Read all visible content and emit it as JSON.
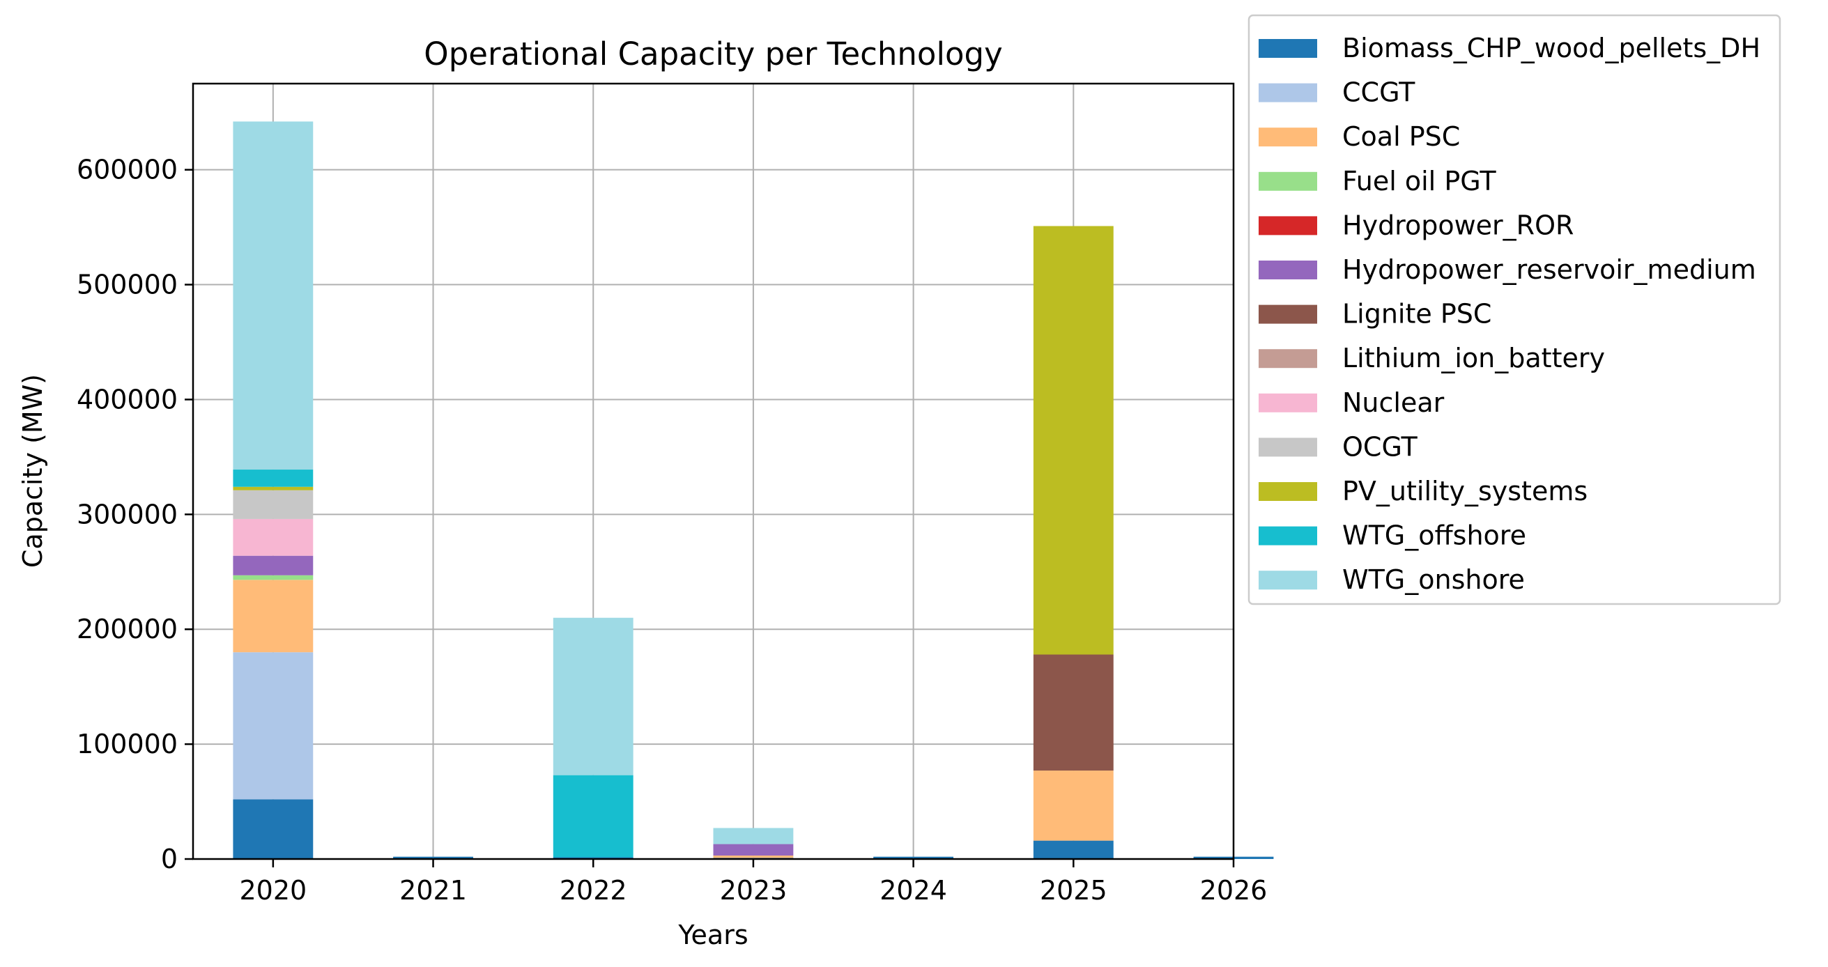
{
  "chart_data": {
    "type": "bar",
    "stacked": true,
    "title": "Operational Capacity per Technology",
    "xlabel": "Years",
    "ylabel": "Capacity (MW)",
    "categories": [
      "2020",
      "2021",
      "2022",
      "2023",
      "2024",
      "2025",
      "2026"
    ],
    "ylim": [
      0,
      675000
    ],
    "yticks": [
      0,
      100000,
      200000,
      300000,
      400000,
      500000,
      600000
    ],
    "ytick_labels": [
      "0",
      "100000",
      "200000",
      "300000",
      "400000",
      "500000",
      "600000"
    ],
    "grid": true,
    "legend_position": "outside-right",
    "series": [
      {
        "name": "Biomass_CHP_wood_pellets_DH",
        "color": "#1f77b4",
        "values": [
          52000,
          2000,
          1500,
          1000,
          2000,
          16000,
          2000
        ]
      },
      {
        "name": "CCGT",
        "color": "#aec7e8",
        "values": [
          128000,
          0,
          0,
          0,
          0,
          0,
          0
        ]
      },
      {
        "name": "Coal PSC",
        "color": "#ffbb78",
        "values": [
          63000,
          0,
          0,
          2000,
          0,
          61000,
          0
        ]
      },
      {
        "name": "Fuel oil PGT",
        "color": "#98df8a",
        "values": [
          4000,
          0,
          0,
          0,
          0,
          0,
          0
        ]
      },
      {
        "name": "Hydropower_ROR",
        "color": "#d62728",
        "values": [
          0,
          0,
          0,
          0,
          0,
          0,
          0
        ]
      },
      {
        "name": "Hydropower_reservoir_medium",
        "color": "#9467bd",
        "values": [
          17000,
          0,
          0,
          10000,
          0,
          0,
          0
        ]
      },
      {
        "name": "Lignite PSC",
        "color": "#8c564b",
        "values": [
          0,
          0,
          0,
          0,
          0,
          101000,
          0
        ]
      },
      {
        "name": "Lithium_ion_battery",
        "color": "#c49c94",
        "values": [
          0,
          0,
          0,
          0,
          0,
          0,
          0
        ]
      },
      {
        "name": "Nuclear",
        "color": "#f7b6d2",
        "values": [
          32000,
          0,
          0,
          0,
          0,
          0,
          0
        ]
      },
      {
        "name": "OCGT",
        "color": "#c7c7c7",
        "values": [
          25000,
          0,
          0,
          0,
          0,
          0,
          0
        ]
      },
      {
        "name": "PV_utility_systems",
        "color": "#bcbd22",
        "values": [
          3000,
          0,
          0,
          0,
          0,
          373000,
          0
        ]
      },
      {
        "name": "WTG_offshore",
        "color": "#17becf",
        "values": [
          15000,
          0,
          71500,
          0,
          0,
          0,
          0
        ]
      },
      {
        "name": "WTG_onshore",
        "color": "#9edae5",
        "values": [
          303000,
          0,
          137000,
          14000,
          0,
          0,
          0
        ]
      }
    ]
  }
}
